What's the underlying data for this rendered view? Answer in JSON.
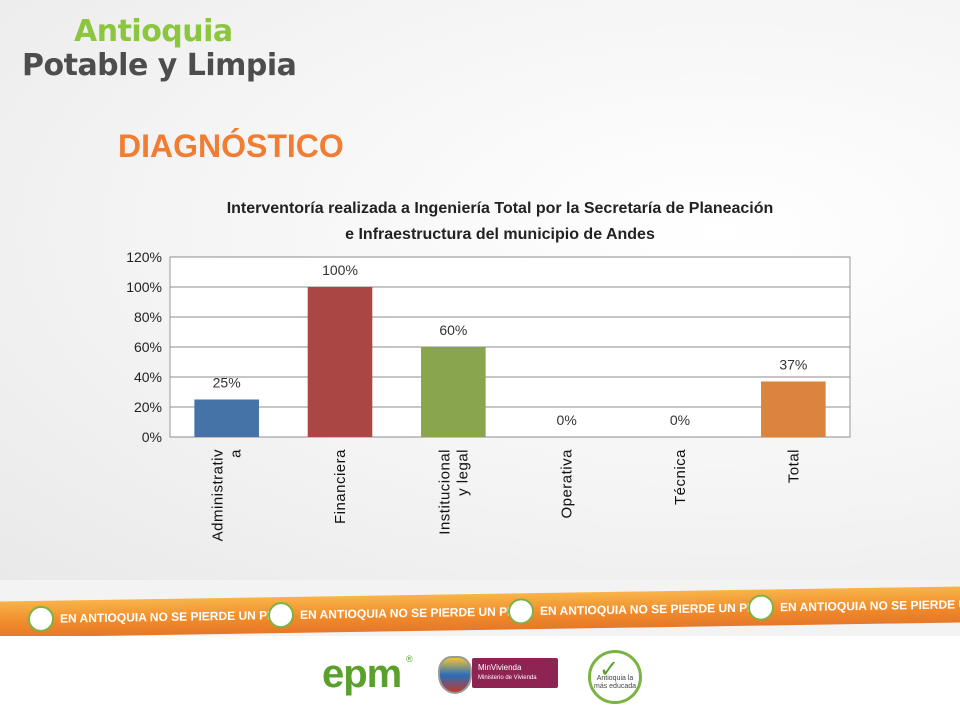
{
  "logo": {
    "line1": "Antioquia",
    "line2": "Potable y Limpia"
  },
  "slide_title": "DIAGNÓSTICO",
  "chart_data": {
    "type": "bar",
    "title": "Interventoría realizada a Ingeniería Total  por la Secretaría de Planeación e Infraestructura del municipio de Andes",
    "title_lines": [
      "Interventoría realizada a Ingeniería Total  por la Secretaría de Planeación",
      "e Infraestructura del municipio de Andes"
    ],
    "categories": [
      "Administrativa",
      "Financiera",
      "Institucional y legal",
      "Operativa",
      "Técnica",
      "Total"
    ],
    "category_lines": [
      [
        "Administrativ",
        "a"
      ],
      [
        "Financiera"
      ],
      [
        "Institucional",
        "y legal"
      ],
      [
        "Operativa"
      ],
      [
        "Técnica"
      ],
      [
        "Total"
      ]
    ],
    "values": [
      25,
      100,
      60,
      0,
      0,
      37
    ],
    "data_labels": [
      "25%",
      "100%",
      "60%",
      "0%",
      "0%",
      "37%"
    ],
    "colors": [
      "#4572a7",
      "#aa4643",
      "#89a54e",
      "#71588f",
      "#4198af",
      "#db843d"
    ],
    "ylim": [
      0,
      120
    ],
    "yticks": [
      "0%",
      "20%",
      "40%",
      "60%",
      "80%",
      "100%",
      "120%"
    ],
    "grid": true,
    "xlabel": "",
    "ylabel": ""
  },
  "banner": {
    "text": "EN ANTIOQUIA NO SE PIERDE UN PESO",
    "repeat": 4,
    "color": "#f08a2a"
  },
  "footer": {
    "epm": "epm",
    "epm_reg": "®",
    "minvivienda": "MinVivienda",
    "minvivienda_sub": "Ministerio de Vivienda",
    "antioquia_edu": "Antioquia la más educada"
  }
}
